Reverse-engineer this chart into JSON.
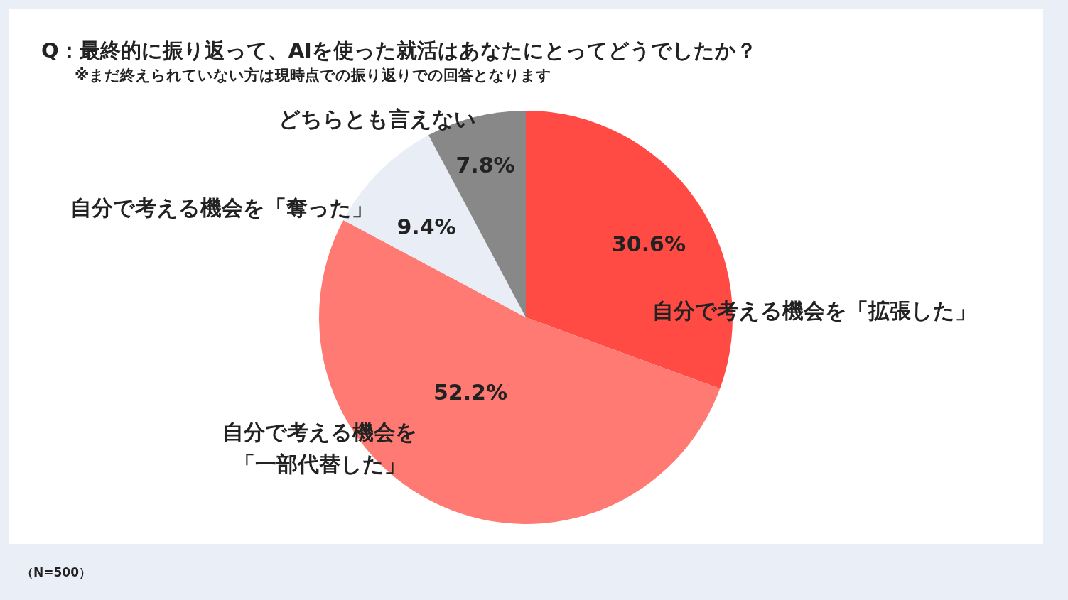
{
  "chart_data": {
    "type": "pie",
    "title": "Q：最終的に振り返って、AIを使った就活はあなたにとってどうでしたか？",
    "subtitle": "※まだ終えられていない方は現時点での振り返りでの回答となります",
    "categories": [
      "自分で考える機会を「拡張した」",
      "自分で考える機会を「一部代替した」",
      "自分で考える機会を「奪った」",
      "どちらとも言えない"
    ],
    "values": [
      30.6,
      52.2,
      9.4,
      7.8
    ],
    "value_labels": [
      "30.6%",
      "52.2%",
      "9.4%",
      "7.8%"
    ],
    "colors": [
      "#ff4b44",
      "#ff7a72",
      "#e8edf6",
      "#888888"
    ],
    "annotations": [
      "（N=500）"
    ]
  }
}
